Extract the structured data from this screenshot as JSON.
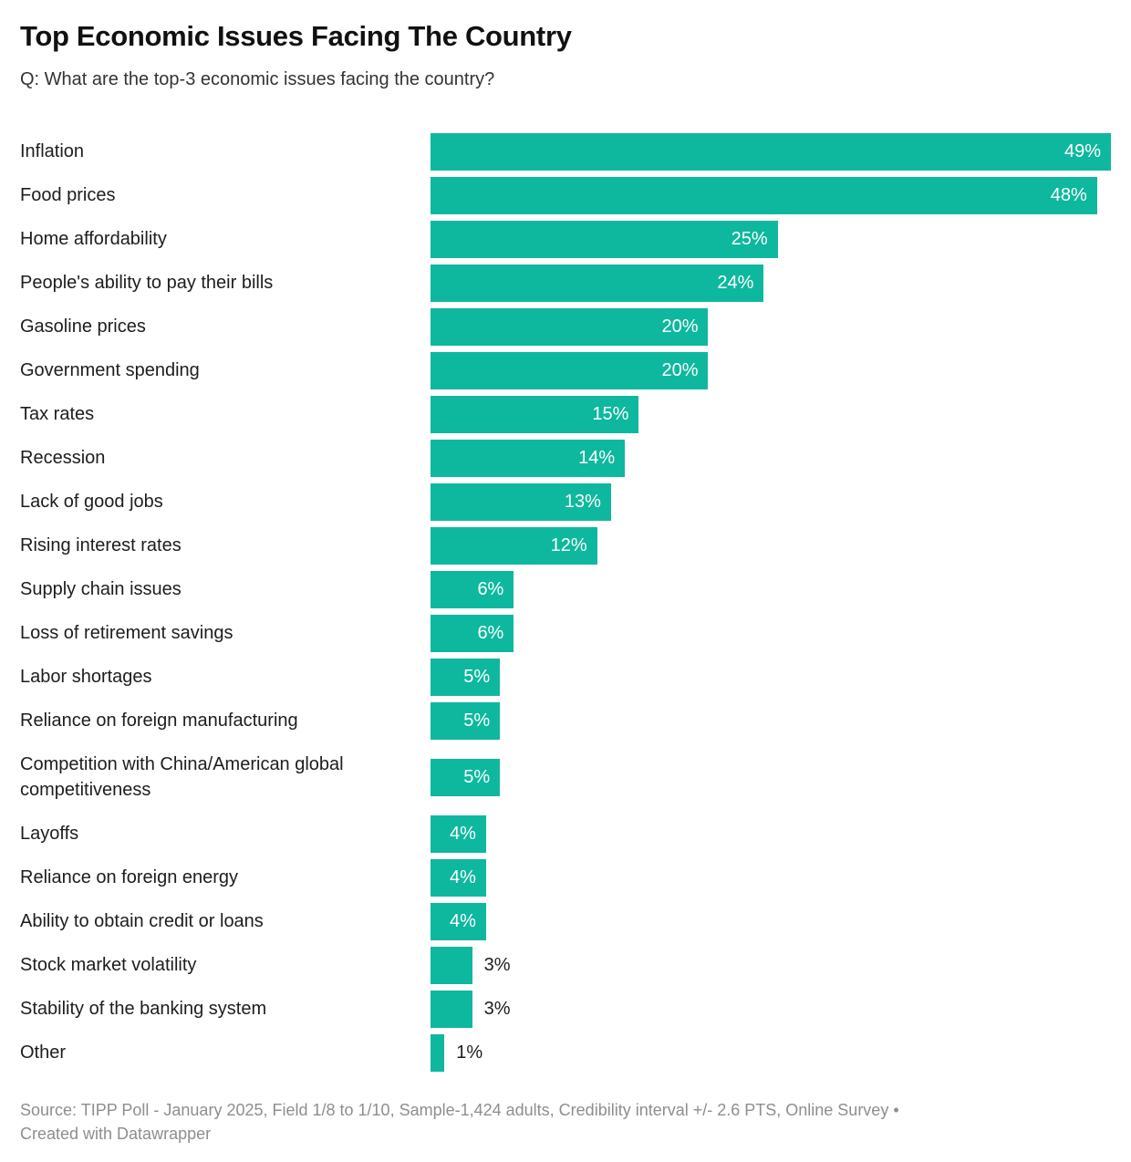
{
  "header": {
    "title": "Top Economic Issues Facing The Country",
    "subtitle": "Q: What are the top-3 economic issues facing the country?"
  },
  "chart_data": {
    "type": "bar",
    "orientation": "horizontal",
    "title": "Top Economic Issues Facing The Country",
    "subtitle": "Q: What are the top-3 economic issues facing the country?",
    "categories": [
      "Inflation",
      "Food prices",
      "Home affordability",
      "People's ability to pay their bills",
      "Gasoline prices",
      "Government spending",
      "Tax rates",
      "Recession",
      "Lack of good jobs",
      "Rising interest rates",
      "Supply chain issues",
      "Loss of retirement savings",
      "Labor shortages",
      "Reliance on foreign manufacturing",
      "Competition with China/American global competitiveness",
      "Layoffs",
      "Reliance on foreign energy",
      "Ability to obtain credit or loans",
      "Stock market volatility",
      "Stability of the banking system",
      "Other"
    ],
    "values": [
      49,
      48,
      25,
      24,
      20,
      20,
      15,
      14,
      13,
      12,
      6,
      6,
      5,
      5,
      5,
      4,
      4,
      4,
      3,
      3,
      1
    ],
    "value_suffix": "%",
    "xlim": [
      0,
      49
    ],
    "grid": false,
    "legend": "none",
    "bar_color": "#0eb89f",
    "inside_label_color": "#ffffff",
    "outside_label_color": "#1d1d1d",
    "inside_label_min_value": 4
  },
  "footer": {
    "source": "Source: TIPP Poll - January 2025, Field 1/8 to 1/10, Sample-1,424 adults, Credibility interval +/- 2.6 PTS, Online Survey",
    "separator": "•",
    "credit": "Created with Datawrapper"
  }
}
